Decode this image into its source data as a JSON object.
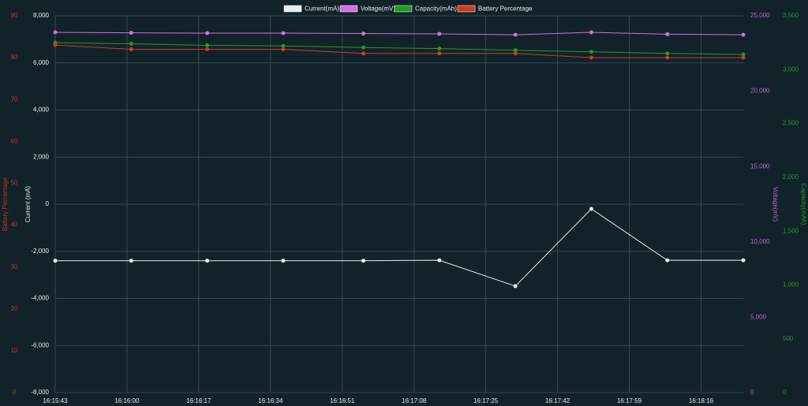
{
  "chart_data": {
    "type": "line",
    "x": [
      "16:15:43",
      "16:16:01",
      "16:16:19",
      "16:16:37",
      "16:16:56",
      "16:17:14",
      "16:17:32",
      "16:17:50",
      "16:18:08",
      "16:18:26"
    ],
    "xlim": [
      "16:15:43",
      "16:18:26"
    ],
    "xticks": [
      "16:15:43",
      "16:16:00",
      "16:16:17",
      "16:16:34",
      "16:16:51",
      "16:17:08",
      "16:17:25",
      "16:17:42",
      "16:17:59",
      "16:18:16"
    ],
    "series": [
      {
        "name": "Current(mA)",
        "color": "#e6eef0",
        "axis": "y",
        "values": [
          -2400,
          -2400,
          -2400,
          -2400,
          -2400,
          -2380,
          -3480,
          -200,
          -2380,
          -2380
        ]
      },
      {
        "name": "Voltage(mV)",
        "color": "#d070e0",
        "axis": "y2",
        "values": [
          23900,
          23870,
          23850,
          23850,
          23820,
          23800,
          23740,
          23900,
          23780,
          23740
        ]
      },
      {
        "name": "Capacity(mAh)",
        "color": "#1e9e1e",
        "axis": "y3",
        "values": [
          3250,
          3240,
          3225,
          3220,
          3205,
          3195,
          3180,
          3165,
          3150,
          3140
        ]
      },
      {
        "name": "Battery Percentage",
        "color": "#d03a1e",
        "axis": "y4",
        "values": [
          83,
          82,
          82,
          82,
          81,
          81,
          81,
          80,
          80,
          80
        ]
      }
    ],
    "ylabel": "Current (mA)",
    "ylim": [
      -8000,
      8000
    ],
    "yticks": [
      {
        "value": -8000,
        "label": "-8,000"
      },
      {
        "value": -6000,
        "label": "-6,000"
      },
      {
        "value": -4000,
        "label": "-4,000"
      },
      {
        "value": -2000,
        "label": "-2,000"
      },
      0,
      {
        "value": 2000,
        "label": "2,000"
      },
      {
        "value": 4000,
        "label": "4,000"
      },
      {
        "value": 6000,
        "label": "6,000"
      },
      {
        "value": 8000,
        "label": "8,000"
      }
    ],
    "y2label": "Voltage(mV)",
    "y2lim": [
      0,
      25000
    ],
    "y2ticks": [
      0,
      {
        "value": 5000,
        "label": "5,000"
      },
      {
        "value": 10000,
        "label": "10,000"
      },
      {
        "value": 15000,
        "label": "15,000"
      },
      {
        "value": 20000,
        "label": "20,000"
      },
      {
        "value": 25000,
        "label": "25,000"
      }
    ],
    "y3label": "Capacity(mAh)",
    "y3lim": [
      0,
      3500
    ],
    "y3ticks": [
      0,
      500,
      {
        "value": 1000,
        "label": "1,000"
      },
      {
        "value": 1500,
        "label": "1,500"
      },
      {
        "value": 2000,
        "label": "2,000"
      },
      {
        "value": 2500,
        "label": "2,500"
      },
      {
        "value": 3000,
        "label": "3,000"
      },
      {
        "value": 3500,
        "label": "3,500"
      }
    ],
    "y4label": "Battery Percentage",
    "y4lim": [
      0,
      90
    ],
    "y4ticks": [
      0,
      10,
      20,
      30,
      40,
      50,
      60,
      70,
      80,
      90
    ],
    "grid": true
  }
}
